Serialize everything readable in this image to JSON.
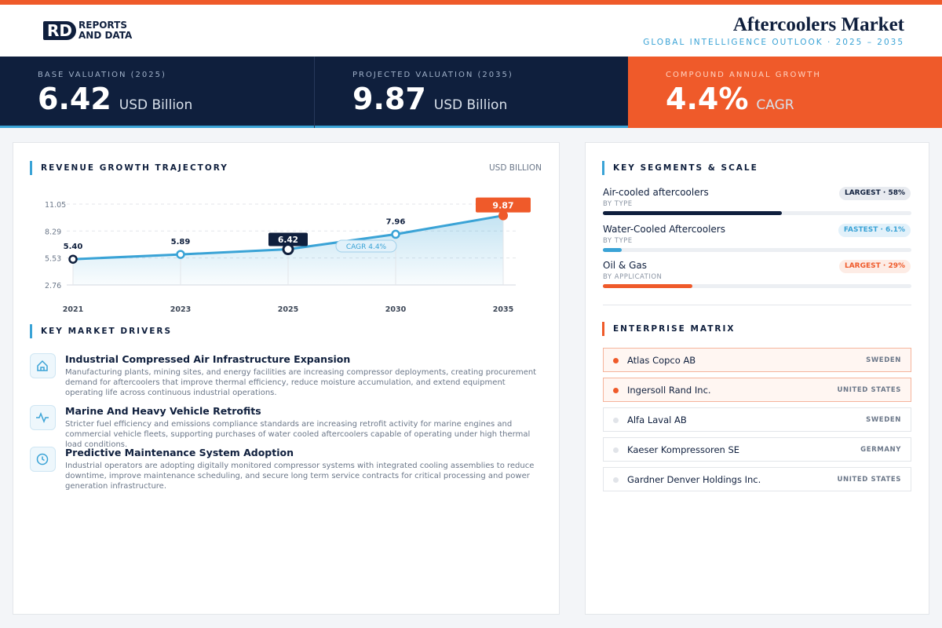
{
  "header": {
    "logo": {
      "mark": "RD",
      "line1": "REPORTS",
      "line2": "AND DATA"
    },
    "title": "Aftercoolers Market",
    "subtitle": "GLOBAL INTELLIGENCE OUTLOOK · 2025 – 2035"
  },
  "kpis": [
    {
      "label": "BASE VALUATION (2025)",
      "value": 6.42,
      "unit": "USD Billion"
    },
    {
      "label": "PROJECTED VALUATION (2035)",
      "value": 9.87,
      "unit": "USD Billion"
    },
    {
      "label": "COMPOUND ANNUAL GROWTH",
      "value": "4.4%",
      "unit": "CAGR"
    }
  ],
  "chart_data": {
    "type": "line",
    "title": "REVENUE GROWTH TRAJECTORY",
    "unit_label": "USD BILLION",
    "categories": [
      "2021",
      "2023",
      "2025",
      "2030",
      "2035"
    ],
    "values": [
      5.4,
      5.89,
      6.42,
      7.96,
      9.87
    ],
    "value_labels": [
      "5.40",
      "5.89",
      "6.42",
      "7.96",
      "9.87"
    ],
    "color": "#3aa3d6",
    "ylim": [
      2.76,
      11.05
    ],
    "yticks": [
      2.76,
      5.53,
      8.29,
      11.05
    ],
    "grid": true,
    "annotation": "CAGR 4.4%"
  },
  "drivers": {
    "title": "KEY MARKET DRIVERS",
    "items": [
      {
        "title": "Industrial Compressed Air Infrastructure Expansion",
        "text": "Manufacturing plants, mining sites, and energy facilities are increasing compressor deployments, creating procurement demand for aftercoolers that improve thermal efficiency, reduce moisture accumulation, and extend equipment operating life across continuous industrial operations."
      },
      {
        "title": "Marine And Heavy Vehicle Retrofits",
        "text": "Stricter fuel efficiency and emissions compliance standards are increasing retrofit activity for marine engines and commercial vehicle fleets, supporting purchases of water cooled aftercoolers capable of operating under high thermal load conditions."
      },
      {
        "title": "Predictive Maintenance System Adoption",
        "text": "Industrial operators are adopting digitally monitored compressor systems with integrated cooling assemblies to reduce downtime, improve maintenance scheduling, and secure long term service contracts for critical processing and power generation infrastructure."
      }
    ]
  },
  "segments": {
    "title": "KEY SEGMENTS & SCALE",
    "items": [
      {
        "name": "Air-cooled aftercoolers",
        "type": "BY TYPE",
        "badge": "LARGEST · 58%",
        "share": 58,
        "color": "#0f1f3d"
      },
      {
        "name": "Water-Cooled Aftercoolers",
        "type": "BY TYPE",
        "badge": "FASTEST · 6.1%",
        "share": 6.1,
        "color": "#3aa3d6"
      },
      {
        "name": "Oil & Gas",
        "type": "BY APPLICATION",
        "badge": "LARGEST · 29%",
        "share": 29,
        "color": "#ef5a2a"
      }
    ]
  },
  "companies": {
    "title": "ENTERPRISE MATRIX",
    "items": [
      {
        "name": "Atlas Copco AB",
        "country": "SWEDEN",
        "highlighted": true
      },
      {
        "name": "Ingersoll Rand Inc.",
        "country": "UNITED STATES",
        "highlighted": true
      },
      {
        "name": "Alfa Laval AB",
        "country": "SWEDEN",
        "highlighted": false
      },
      {
        "name": "Kaeser Kompressoren SE",
        "country": "GERMANY",
        "highlighted": false
      },
      {
        "name": "Gardner Denver Holdings Inc.",
        "country": "UNITED STATES",
        "highlighted": false
      }
    ]
  }
}
